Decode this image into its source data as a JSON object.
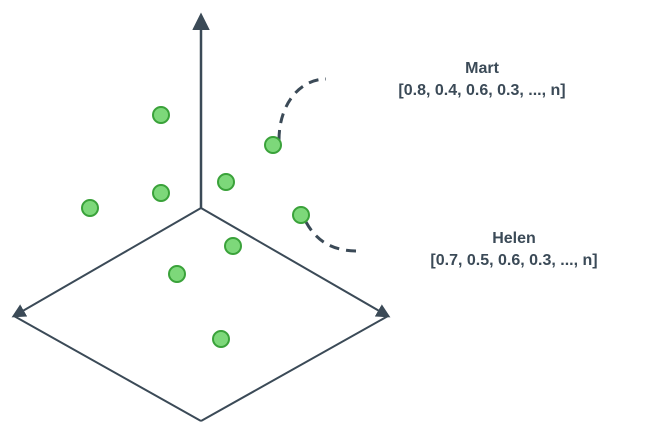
{
  "labels": {
    "mart": {
      "name": "Mart",
      "vector": "[0.8, 0.4, 0.6, 0.3, ..., n]"
    },
    "helen": {
      "name": "Helen",
      "vector": "[0.7, 0.5, 0.6, 0.3, ..., n]"
    }
  },
  "colors": {
    "axis": "#3b4a57",
    "point_fill": "#7dd87a",
    "point_stroke": "#3aa23a",
    "label_text": "#3b4a57"
  },
  "icons": {
    "point": "green-circle",
    "arrowhead": "triangle-arrowhead"
  }
}
